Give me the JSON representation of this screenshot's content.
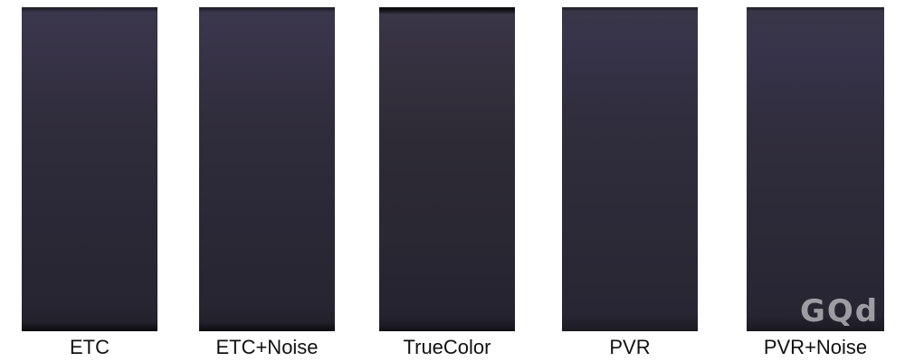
{
  "panels": [
    {
      "label": "ETC"
    },
    {
      "label": "ETC+Noise"
    },
    {
      "label": "TrueColor"
    },
    {
      "label": "PVR"
    },
    {
      "label": "PVR+Noise"
    }
  ],
  "watermark": "GQd",
  "colors": {
    "panel_top": "#3a364d",
    "panel_bottom": "#23212b",
    "background": "#ffffff"
  }
}
